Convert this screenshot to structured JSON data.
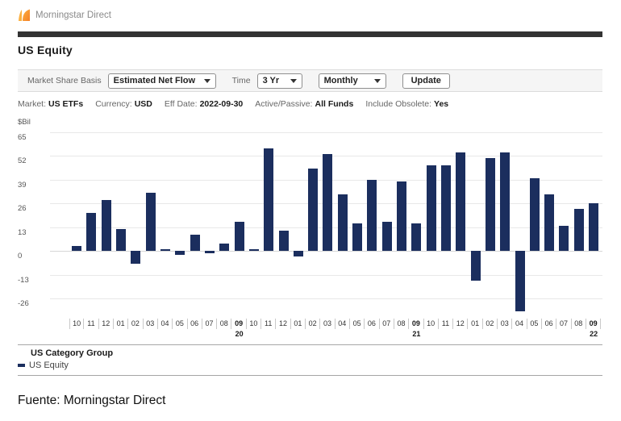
{
  "header": {
    "brand": "Morningstar Direct"
  },
  "page_title": "US Equity",
  "toolbar": {
    "market_share_basis_label": "Market Share Basis",
    "market_share_basis_value": "Estimated Net Flow",
    "time_label": "Time",
    "time_value": "3 Yr",
    "frequency_value": "Monthly",
    "update_label": "Update"
  },
  "filters": [
    {
      "label": "Market:",
      "value": "US ETFs"
    },
    {
      "label": "Currency:",
      "value": "USD"
    },
    {
      "label": "Eff Date:",
      "value": "2022-09-30"
    },
    {
      "label": "Active/Passive:",
      "value": "All Funds"
    },
    {
      "label": "Include Obsolete:",
      "value": "Yes"
    }
  ],
  "legend": {
    "title": "US Category Group",
    "items": [
      {
        "label": "US Equity",
        "color": "#1b2e5e"
      }
    ]
  },
  "footer": {
    "source": "Fuente: Morningstar Direct"
  },
  "colors": {
    "bar": "#1b2e5e",
    "header_bar": "#333333",
    "logo_orange": "#f58025",
    "logo_orange_light": "#fbb040",
    "controls_bg": "#f5f5f5",
    "gridline": "#e8e8e8"
  },
  "chart_data": {
    "type": "bar",
    "title": "US Equity",
    "unit_label": "$Bil",
    "ylabel": "$Bil",
    "xlabel": "",
    "ylim": [
      -36,
      68
    ],
    "yticks": [
      65,
      52,
      39,
      26,
      13,
      0,
      -13,
      -26
    ],
    "grid": true,
    "legend_position": "bottom",
    "categories_months": [
      "10",
      "11",
      "12",
      "01",
      "02",
      "03",
      "04",
      "05",
      "06",
      "07",
      "08",
      "09",
      "10",
      "11",
      "12",
      "01",
      "02",
      "03",
      "04",
      "05",
      "06",
      "07",
      "08",
      "09",
      "10",
      "11",
      "12",
      "01",
      "02",
      "03",
      "04",
      "05",
      "06",
      "07",
      "08",
      "09"
    ],
    "categories_years": [
      "",
      "",
      "",
      "",
      "",
      "",
      "",
      "",
      "",
      "",
      "",
      "20",
      "",
      "",
      "",
      "",
      "",
      "",
      "",
      "",
      "",
      "",
      "",
      "21",
      "",
      "",
      "",
      "",
      "",
      "",
      "",
      "",
      "",
      "",
      "",
      "22"
    ],
    "series": [
      {
        "name": "US Equity",
        "color": "#1b2e5e",
        "values": [
          3,
          21,
          28,
          12,
          -7,
          32,
          1,
          -2,
          9,
          -1,
          4,
          16,
          1,
          56,
          11,
          -3,
          45,
          53,
          31,
          15,
          39,
          16,
          38,
          15,
          47,
          47,
          54,
          -16,
          51,
          54,
          -33,
          40,
          31,
          14,
          23,
          26
        ]
      }
    ]
  }
}
